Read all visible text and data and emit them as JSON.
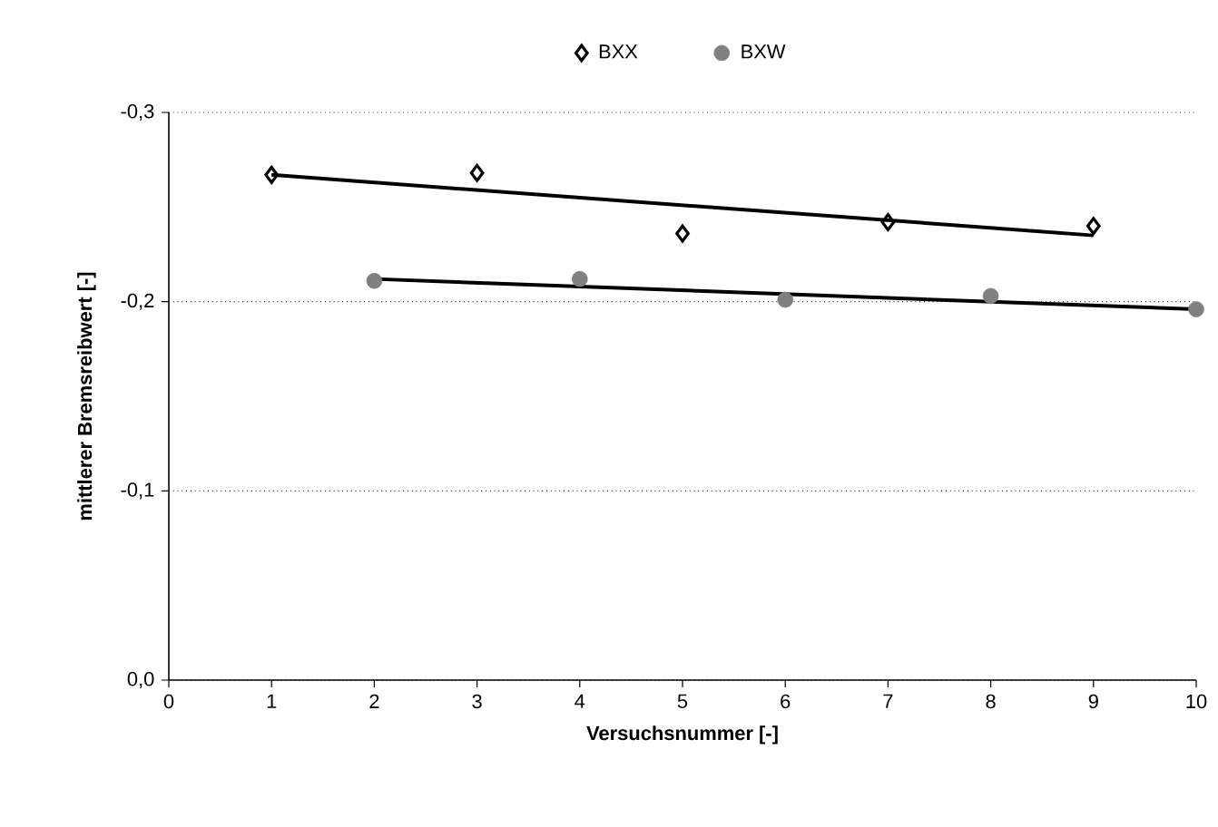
{
  "chart_data": {
    "type": "scatter",
    "xlabel": "Versuchsnummer [-]",
    "ylabel": "mittlerer Bremsreibwert [-]",
    "xlim": [
      0,
      10
    ],
    "xticks": [
      0,
      1,
      2,
      3,
      4,
      5,
      6,
      7,
      8,
      9,
      10
    ],
    "ylim": [
      0,
      -0.3
    ],
    "yticks": [
      {
        "value": 0,
        "label": "0,0"
      },
      {
        "value": -0.1,
        "label": "-0,1"
      },
      {
        "value": -0.2,
        "label": "-0,2"
      },
      {
        "value": -0.3,
        "label": "-0,3"
      }
    ],
    "grid": "y",
    "legend": "top",
    "series": [
      {
        "name": "BXX",
        "color": "#000000",
        "marker": "diamond",
        "x": [
          1,
          3,
          5,
          7,
          9
        ],
        "values": [
          -0.267,
          -0.268,
          -0.236,
          -0.242,
          -0.24
        ]
      },
      {
        "name": "BXW",
        "color": "#808080",
        "marker": "circle",
        "x": [
          2,
          4,
          6,
          8,
          10
        ],
        "values": [
          -0.211,
          -0.212,
          -0.201,
          -0.203,
          -0.196
        ]
      },
      {
        "type": "line",
        "color": "#000000",
        "marker": "none",
        "x": [
          1,
          9
        ],
        "values": [
          -0.267,
          -0.235
        ]
      },
      {
        "type": "line",
        "color": "#000000",
        "marker": "none",
        "x": [
          2,
          10
        ],
        "values": [
          -0.212,
          -0.196
        ]
      }
    ]
  }
}
